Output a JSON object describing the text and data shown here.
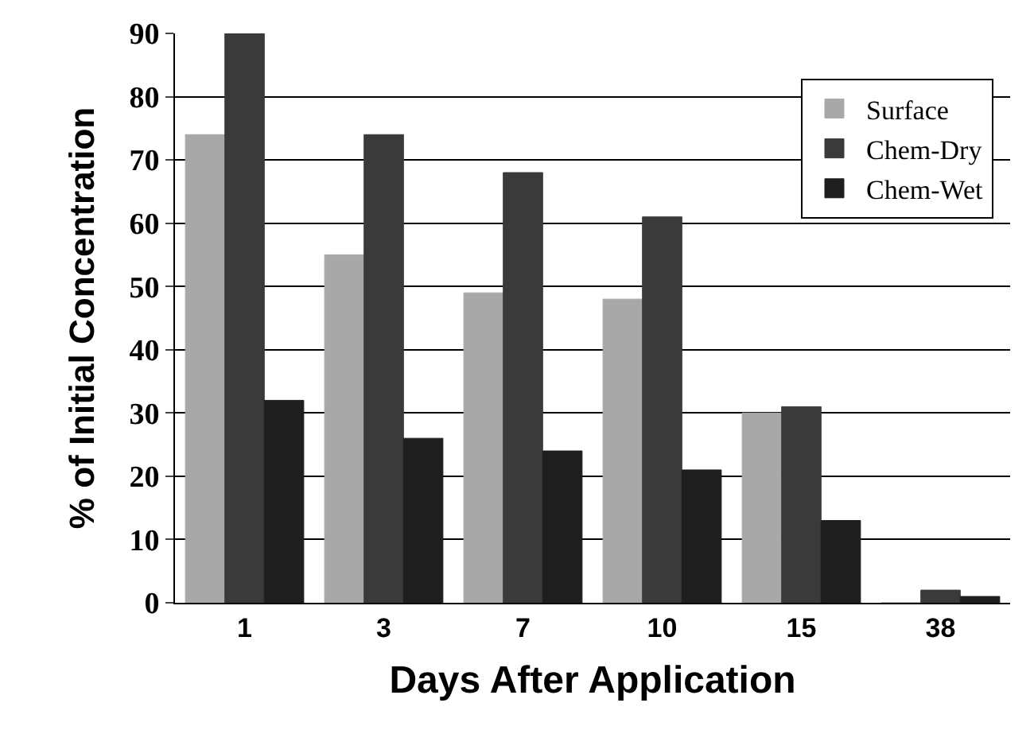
{
  "chart_data": {
    "type": "bar",
    "xlabel": "Days After Application",
    "ylabel": "% of Initial Concentration",
    "categories": [
      "1",
      "3",
      "7",
      "10",
      "15",
      "38"
    ],
    "series": [
      {
        "name": "Surface",
        "color": "#a8a8a8",
        "values": [
          74,
          55,
          49,
          48,
          30,
          0
        ]
      },
      {
        "name": "Chem-Dry",
        "color": "#3a3a3a",
        "values": [
          90,
          74,
          68,
          61,
          31,
          2
        ]
      },
      {
        "name": "Chem-Wet",
        "color": "#1e1e1e",
        "values": [
          32,
          26,
          24,
          21,
          13,
          1
        ]
      }
    ],
    "ylim": [
      0,
      90
    ],
    "yticks": [
      0,
      10,
      20,
      30,
      40,
      50,
      60,
      70,
      80,
      90
    ],
    "grid": "y",
    "legend": "top right"
  }
}
